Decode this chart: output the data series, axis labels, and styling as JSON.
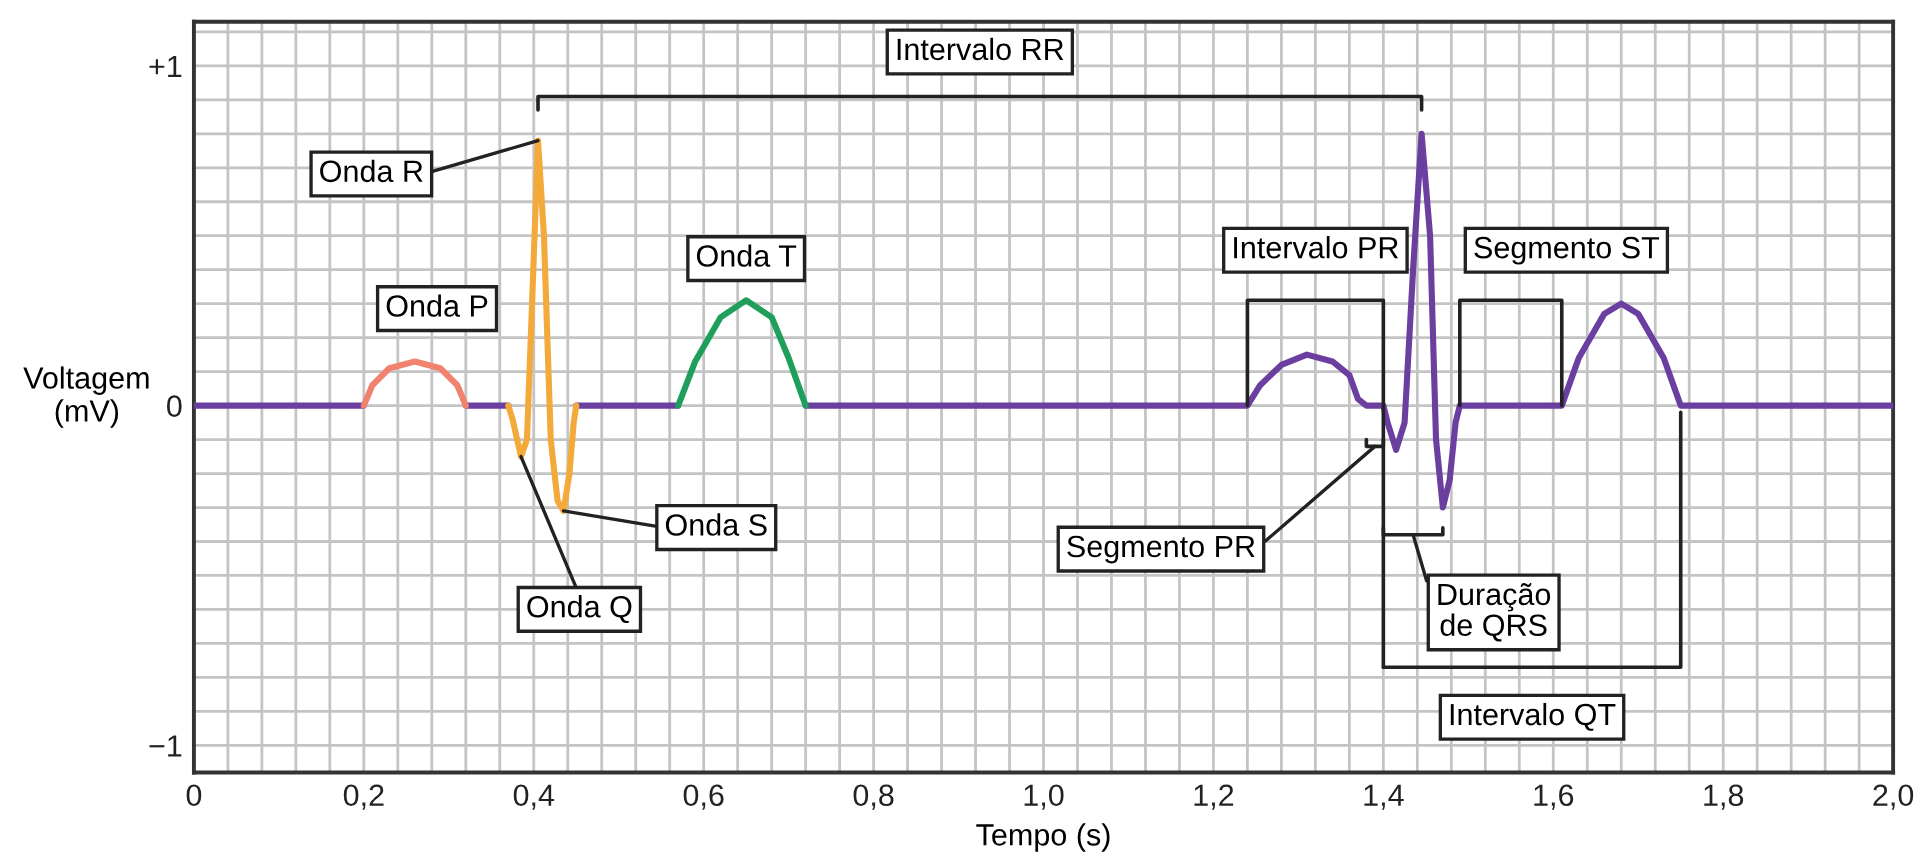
{
  "chart_data": {
    "type": "line",
    "xlabel": "Tempo (s)",
    "ylabel": "Voltagem\n(mV)",
    "xlim": [
      0,
      2.0
    ],
    "ylim": [
      -1.08,
      1.13
    ],
    "grid": true,
    "line_style": "solid",
    "marker": "none",
    "xticks": [
      {
        "value": 0,
        "label": "0"
      },
      {
        "value": 0.04,
        "label": null
      },
      {
        "value": 0.08,
        "label": null
      },
      {
        "value": 0.12,
        "label": null
      },
      {
        "value": 0.16,
        "label": null
      },
      {
        "value": 0.2,
        "label": "0,2"
      },
      {
        "value": 0.24,
        "label": null
      },
      {
        "value": 0.28,
        "label": null
      },
      {
        "value": 0.32,
        "label": null
      },
      {
        "value": 0.36,
        "label": null
      },
      {
        "value": 0.4,
        "label": "0,4"
      },
      {
        "value": 0.44,
        "label": null
      },
      {
        "value": 0.48,
        "label": null
      },
      {
        "value": 0.52,
        "label": null
      },
      {
        "value": 0.56,
        "label": null
      },
      {
        "value": 0.6,
        "label": "0,6"
      },
      {
        "value": 0.64,
        "label": null
      },
      {
        "value": 0.68,
        "label": null
      },
      {
        "value": 0.72,
        "label": null
      },
      {
        "value": 0.76,
        "label": null
      },
      {
        "value": 0.8,
        "label": "0,8"
      },
      {
        "value": 0.84,
        "label": null
      },
      {
        "value": 0.88,
        "label": null
      },
      {
        "value": 0.92,
        "label": null
      },
      {
        "value": 0.96,
        "label": null
      },
      {
        "value": 1.0,
        "label": "1,0"
      },
      {
        "value": 1.04,
        "label": null
      },
      {
        "value": 1.08,
        "label": null
      },
      {
        "value": 1.12,
        "label": null
      },
      {
        "value": 1.16,
        "label": null
      },
      {
        "value": 1.2,
        "label": "1,2"
      },
      {
        "value": 1.24,
        "label": null
      },
      {
        "value": 1.28,
        "label": null
      },
      {
        "value": 1.32,
        "label": null
      },
      {
        "value": 1.36,
        "label": null
      },
      {
        "value": 1.4,
        "label": "1,4"
      },
      {
        "value": 1.44,
        "label": null
      },
      {
        "value": 1.48,
        "label": null
      },
      {
        "value": 1.52,
        "label": null
      },
      {
        "value": 1.56,
        "label": null
      },
      {
        "value": 1.6,
        "label": "1,6"
      },
      {
        "value": 1.64,
        "label": null
      },
      {
        "value": 1.68,
        "label": null
      },
      {
        "value": 1.72,
        "label": null
      },
      {
        "value": 1.76,
        "label": null
      },
      {
        "value": 1.8,
        "label": "1,8"
      },
      {
        "value": 1.84,
        "label": null
      },
      {
        "value": 1.88,
        "label": null
      },
      {
        "value": 1.92,
        "label": null
      },
      {
        "value": 1.96,
        "label": null
      },
      {
        "value": 2.0,
        "label": "2,0"
      }
    ],
    "yticks": [
      {
        "value": -1,
        "label": "−1"
      },
      {
        "value": -0.9,
        "label": null
      },
      {
        "value": -0.8,
        "label": null
      },
      {
        "value": -0.7,
        "label": null
      },
      {
        "value": -0.6,
        "label": null
      },
      {
        "value": -0.5,
        "label": null
      },
      {
        "value": -0.4,
        "label": null
      },
      {
        "value": -0.3,
        "label": null
      },
      {
        "value": -0.2,
        "label": null
      },
      {
        "value": -0.1,
        "label": null
      },
      {
        "value": 0,
        "label": "0"
      },
      {
        "value": 0.1,
        "label": null
      },
      {
        "value": 0.2,
        "label": null
      },
      {
        "value": 0.3,
        "label": null
      },
      {
        "value": 0.4,
        "label": null
      },
      {
        "value": 0.5,
        "label": null
      },
      {
        "value": 0.6,
        "label": null
      },
      {
        "value": 0.7,
        "label": null
      },
      {
        "value": 0.8,
        "label": null
      },
      {
        "value": 0.9,
        "label": null
      },
      {
        "value": 1,
        "label": "+1"
      },
      {
        "value": 1.1,
        "label": null
      }
    ],
    "series": [
      {
        "color": "#6b3fa0",
        "x": [
          0,
          0.2,
          0.26,
          0.32,
          0.37,
          0.41,
          0.45,
          0.57,
          0.65,
          0.72,
          1.24,
          1.255,
          1.28,
          1.31,
          1.34,
          1.36,
          1.37,
          1.38,
          1.4,
          1.405,
          1.415,
          1.425,
          1.435,
          1.445,
          1.455,
          1.462,
          1.47,
          1.478,
          1.485,
          1.49,
          1.61,
          1.63,
          1.66,
          1.68,
          1.7,
          1.73,
          1.75,
          2.0
        ],
        "values": [
          0,
          0,
          null,
          0,
          0,
          null,
          0,
          0,
          null,
          0,
          0,
          0.06,
          0.12,
          0.15,
          0.13,
          0.09,
          0.02,
          0,
          0,
          -0.05,
          -0.13,
          -0.05,
          0.4,
          0.8,
          0.5,
          -0.1,
          -0.3,
          -0.22,
          -0.05,
          0,
          0,
          0.14,
          0.27,
          0.3,
          0.27,
          0.14,
          0,
          0
        ]
      },
      {
        "color": "#f0826e",
        "x": [
          0.2,
          0.21,
          0.23,
          0.26,
          0.29,
          0.31,
          0.32
        ],
        "values": [
          0,
          0.06,
          0.11,
          0.13,
          0.11,
          0.06,
          0
        ]
      },
      {
        "color": "#f4aa3a",
        "x": [
          0.37,
          0.375,
          0.385,
          0.392,
          0.398,
          0.405,
          0.412,
          0.42,
          0.428,
          0.435,
          0.442,
          0.447,
          0.45
        ],
        "values": [
          0,
          -0.04,
          -0.15,
          -0.1,
          0.3,
          0.78,
          0.5,
          -0.1,
          -0.28,
          -0.31,
          -0.2,
          -0.05,
          0
        ]
      },
      {
        "color": "#1f9e5c",
        "x": [
          0.57,
          0.59,
          0.62,
          0.65,
          0.68,
          0.7,
          0.72
        ],
        "values": [
          0,
          0.13,
          0.26,
          0.31,
          0.26,
          0.14,
          0
        ]
      },
      {
        "color": "#222222",
        "x": [
          0.405,
          0.405,
          1.445,
          1.445
        ],
        "values": [
          0.87,
          0.91,
          0.91,
          0.87
        ]
      },
      {
        "color": "#222222",
        "x": [
          1.24,
          1.24,
          1.4,
          1.4
        ],
        "values": [
          0.0,
          0.31,
          0.31,
          -0.77
        ]
      },
      {
        "color": "#222222",
        "x": [
          1.49,
          1.49,
          1.61,
          1.61
        ],
        "values": [
          0.0,
          0.31,
          0.31,
          0.0
        ]
      },
      {
        "color": "#222222",
        "x": [
          1.38,
          1.38,
          1.4,
          1.4
        ],
        "values": [
          -0.1,
          -0.12,
          -0.12,
          -0.1
        ]
      },
      {
        "color": "#222222",
        "x": [
          1.4,
          1.4,
          1.47,
          1.47
        ],
        "values": [
          -0.36,
          -0.38,
          -0.38,
          -0.36
        ]
      },
      {
        "color": "#222222",
        "x": [
          1.4,
          1.75,
          1.75
        ],
        "values": [
          -0.77,
          -0.77,
          -0.02
        ]
      }
    ],
    "annotations": [
      {
        "text": "Onda P",
        "x": 0.26,
        "y": 0.13
      },
      {
        "text": "Onda R",
        "x": 0.405,
        "y": 0.78
      },
      {
        "text": "Onda T",
        "x": 0.65,
        "y": 0.31
      },
      {
        "text": "Onda Q",
        "x": 0.385,
        "y": -0.15
      },
      {
        "text": "Onda S",
        "x": 0.435,
        "y": -0.31
      },
      {
        "text": "Intervalo RR",
        "x": 0.925,
        "y": 0.91
      },
      {
        "text": "Intervalo PR",
        "x": 1.32,
        "y": 0.31
      },
      {
        "text": "Segmento ST",
        "x": 1.55,
        "y": 0.31
      },
      {
        "text": "Segmento PR",
        "x": 1.39,
        "y": -0.12
      },
      {
        "text": "Duração\nde QRS",
        "x": 1.435,
        "y": -0.38
      },
      {
        "text": "Intervalo QT",
        "x": 1.575,
        "y": -0.77
      }
    ]
  }
}
